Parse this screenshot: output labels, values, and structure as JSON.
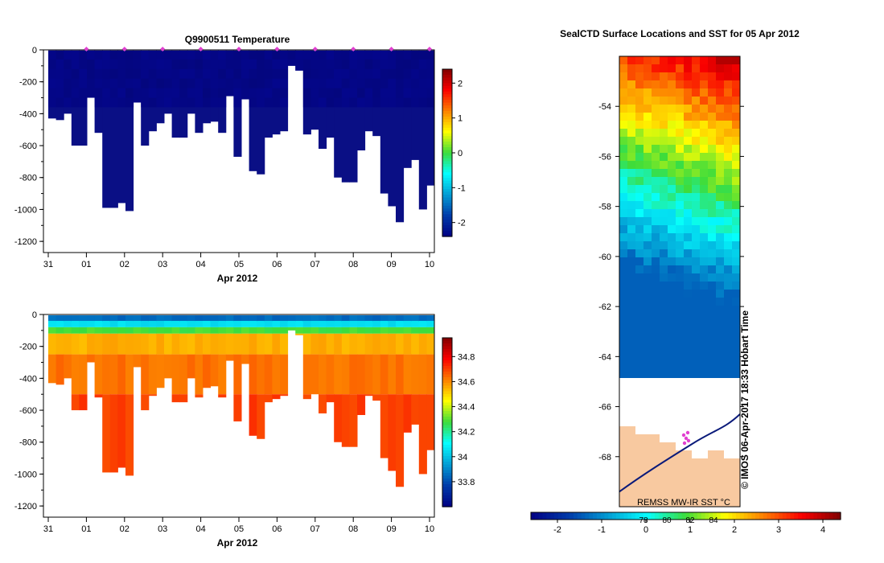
{
  "chart_data": [
    {
      "type": "heatmap",
      "title": "Q9900511  Temperature",
      "xlabel": "Apr 2012",
      "x_ticks": [
        "31",
        "01",
        "02",
        "03",
        "04",
        "05",
        "06",
        "07",
        "08",
        "09",
        "10"
      ],
      "y_ticks": [
        0,
        -200,
        -400,
        -600,
        -800,
        -1000,
        -1200
      ],
      "ylim": [
        -1270,
        0
      ],
      "colorbar_ticks": [
        2,
        1,
        0,
        -1,
        -2
      ],
      "colorbar_range": [
        -2.4,
        2.4
      ],
      "dive_marker_days": [
        1,
        2,
        3,
        4,
        5,
        6,
        7,
        8,
        9,
        10
      ],
      "profile_depths": [
        -430,
        -440,
        -400,
        -600,
        -600,
        -300,
        -520,
        -990,
        -990,
        -960,
        -1010,
        -330,
        -600,
        -510,
        -460,
        -400,
        -550,
        -550,
        -400,
        -520,
        -460,
        -450,
        -520,
        -290,
        -670,
        -310,
        -760,
        -780,
        -550,
        -530,
        -510,
        -100,
        -130,
        -530,
        -500,
        -620,
        -550,
        -800,
        -830,
        -830,
        -630,
        -510,
        -540,
        -900,
        -980,
        -1080,
        -740,
        -690,
        -1000,
        -850
      ]
    },
    {
      "type": "heatmap",
      "xlabel": "Apr 2012",
      "x_ticks": [
        "31",
        "01",
        "02",
        "03",
        "04",
        "05",
        "06",
        "07",
        "08",
        "09",
        "10"
      ],
      "y_ticks": [
        0,
        -200,
        -400,
        -600,
        -800,
        -1000,
        -1200
      ],
      "ylim": [
        -1270,
        0
      ],
      "colorbar_ticks": [
        34.8,
        34.6,
        34.4,
        34.2,
        34,
        33.8
      ],
      "colorbar_range": [
        33.6,
        34.95
      ]
    },
    {
      "type": "heatmap",
      "title": "SealCTD Surface Locations and SST for 05 Apr 2012",
      "y_ticks": [
        -54,
        -56,
        -58,
        -60,
        -62,
        -64,
        -66,
        -68
      ],
      "ylim": [
        -70,
        -52
      ],
      "colorbar_ticks": [
        -2,
        -1,
        0,
        1,
        2,
        3,
        4
      ],
      "colorbar_range": [
        -2.6,
        4.4
      ],
      "overlay_ticks": [
        "78",
        "80",
        "82",
        "84"
      ],
      "source_label": "REMSS MW-IR SST °C",
      "copyright": "© IMOS 06-Apr-2017 18:33 Hobart Time"
    }
  ]
}
